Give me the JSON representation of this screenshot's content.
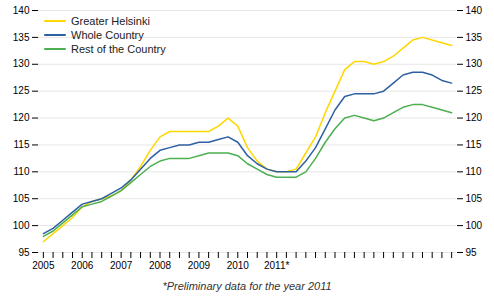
{
  "chart_data": {
    "type": "line",
    "caption": "*Preliminary data for the year 2011",
    "categories": [
      "2005",
      null,
      null,
      null,
      "2006",
      null,
      null,
      null,
      "2007",
      null,
      null,
      null,
      "2008",
      null,
      null,
      null,
      "2009",
      null,
      null,
      null,
      "2010",
      null,
      null,
      null,
      "2011*",
      null,
      null,
      null,
      null,
      null,
      null,
      null,
      null,
      null,
      null,
      null,
      null,
      null,
      null,
      null,
      null,
      null,
      null
    ],
    "series": [
      {
        "name": "Greater Helsinki",
        "color": "#FFD700",
        "values": [
          97.0,
          98.5,
          100.0,
          101.5,
          103.5,
          104.5,
          105.0,
          105.5,
          106.5,
          108.5,
          111.0,
          114.0,
          116.5,
          117.5,
          117.5,
          117.5,
          117.5,
          117.5,
          118.5,
          120.0,
          118.5,
          114.5,
          112.0,
          110.5,
          110.0,
          110.0,
          110.5,
          113.5,
          116.5,
          121.0,
          125.0,
          129.0,
          130.5,
          130.5,
          130.0,
          130.5,
          131.5,
          133.0,
          134.5,
          135.0,
          134.5,
          134.0,
          133.5
        ]
      },
      {
        "name": "Whole Country",
        "color": "#2E5FA3",
        "values": [
          98.5,
          99.5,
          101.0,
          102.5,
          104.0,
          104.5,
          105.0,
          106.0,
          107.0,
          108.5,
          110.5,
          112.5,
          114.0,
          114.5,
          115.0,
          115.0,
          115.5,
          115.5,
          116.0,
          116.5,
          115.5,
          113.0,
          111.5,
          110.5,
          110.0,
          110.0,
          110.0,
          112.0,
          114.5,
          118.0,
          121.5,
          124.0,
          124.5,
          124.5,
          124.5,
          125.0,
          126.5,
          128.0,
          128.5,
          128.5,
          128.0,
          127.0,
          126.5
        ]
      },
      {
        "name": "Rest of the Country",
        "color": "#4CAF50",
        "values": [
          98.0,
          99.0,
          100.5,
          102.0,
          103.5,
          104.0,
          104.5,
          105.5,
          106.5,
          108.0,
          109.5,
          111.0,
          112.0,
          112.5,
          112.5,
          112.5,
          113.0,
          113.5,
          113.5,
          113.5,
          113.0,
          111.5,
          110.5,
          109.5,
          109.0,
          109.0,
          109.0,
          110.0,
          112.5,
          115.5,
          118.0,
          120.0,
          120.5,
          120.0,
          119.5,
          120.0,
          121.0,
          122.0,
          122.5,
          122.5,
          122.0,
          121.5,
          121.0
        ]
      }
    ],
    "ylim": [
      95,
      140
    ],
    "yticks": [
      95,
      100,
      105,
      110,
      115,
      120,
      125,
      130,
      135,
      140
    ],
    "grid": true,
    "legend": "upper left"
  }
}
